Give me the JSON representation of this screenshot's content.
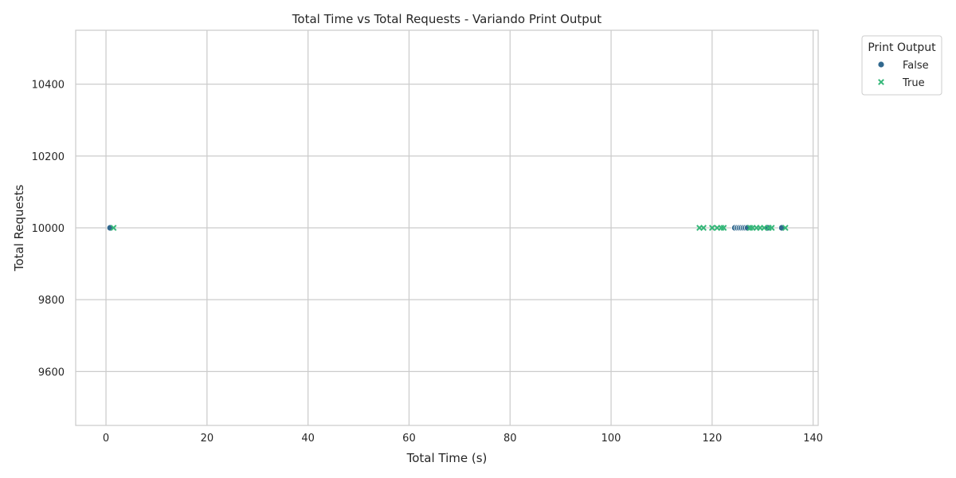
{
  "chart_data": {
    "type": "scatter",
    "title": "Total Time vs Total Requests - Variando Print Output",
    "xlabel": "Total Time (s)",
    "ylabel": "Total Requests",
    "xlim": [
      -6,
      141
    ],
    "ylim": [
      9450,
      10550
    ],
    "xticks": [
      0,
      20,
      40,
      60,
      80,
      100,
      120,
      140
    ],
    "yticks": [
      9600,
      9800,
      10000,
      10200,
      10400
    ],
    "grid": true,
    "legend": {
      "title": "Print Output",
      "placement": "outside-top-right"
    },
    "series": [
      {
        "name": "False",
        "marker": "circle",
        "color": "#31688e",
        "points": [
          {
            "x": 0.8,
            "y": 10000
          },
          {
            "x": 124.5,
            "y": 10000
          },
          {
            "x": 125.0,
            "y": 10000
          },
          {
            "x": 125.4,
            "y": 10000
          },
          {
            "x": 125.8,
            "y": 10000
          },
          {
            "x": 126.2,
            "y": 10000
          },
          {
            "x": 126.6,
            "y": 10000
          },
          {
            "x": 127.0,
            "y": 10000
          },
          {
            "x": 131.0,
            "y": 10000
          },
          {
            "x": 133.8,
            "y": 10000
          }
        ]
      },
      {
        "name": "True",
        "marker": "x",
        "color": "#35b779",
        "points": [
          {
            "x": 1.5,
            "y": 10000
          },
          {
            "x": 117.5,
            "y": 10000
          },
          {
            "x": 118.3,
            "y": 10000
          },
          {
            "x": 120.0,
            "y": 10000
          },
          {
            "x": 121.0,
            "y": 10000
          },
          {
            "x": 121.8,
            "y": 10000
          },
          {
            "x": 122.3,
            "y": 10000
          },
          {
            "x": 127.5,
            "y": 10000
          },
          {
            "x": 128.0,
            "y": 10000
          },
          {
            "x": 128.8,
            "y": 10000
          },
          {
            "x": 129.5,
            "y": 10000
          },
          {
            "x": 130.3,
            "y": 10000
          },
          {
            "x": 131.2,
            "y": 10000
          },
          {
            "x": 131.8,
            "y": 10000
          },
          {
            "x": 134.5,
            "y": 10000
          }
        ]
      }
    ]
  }
}
